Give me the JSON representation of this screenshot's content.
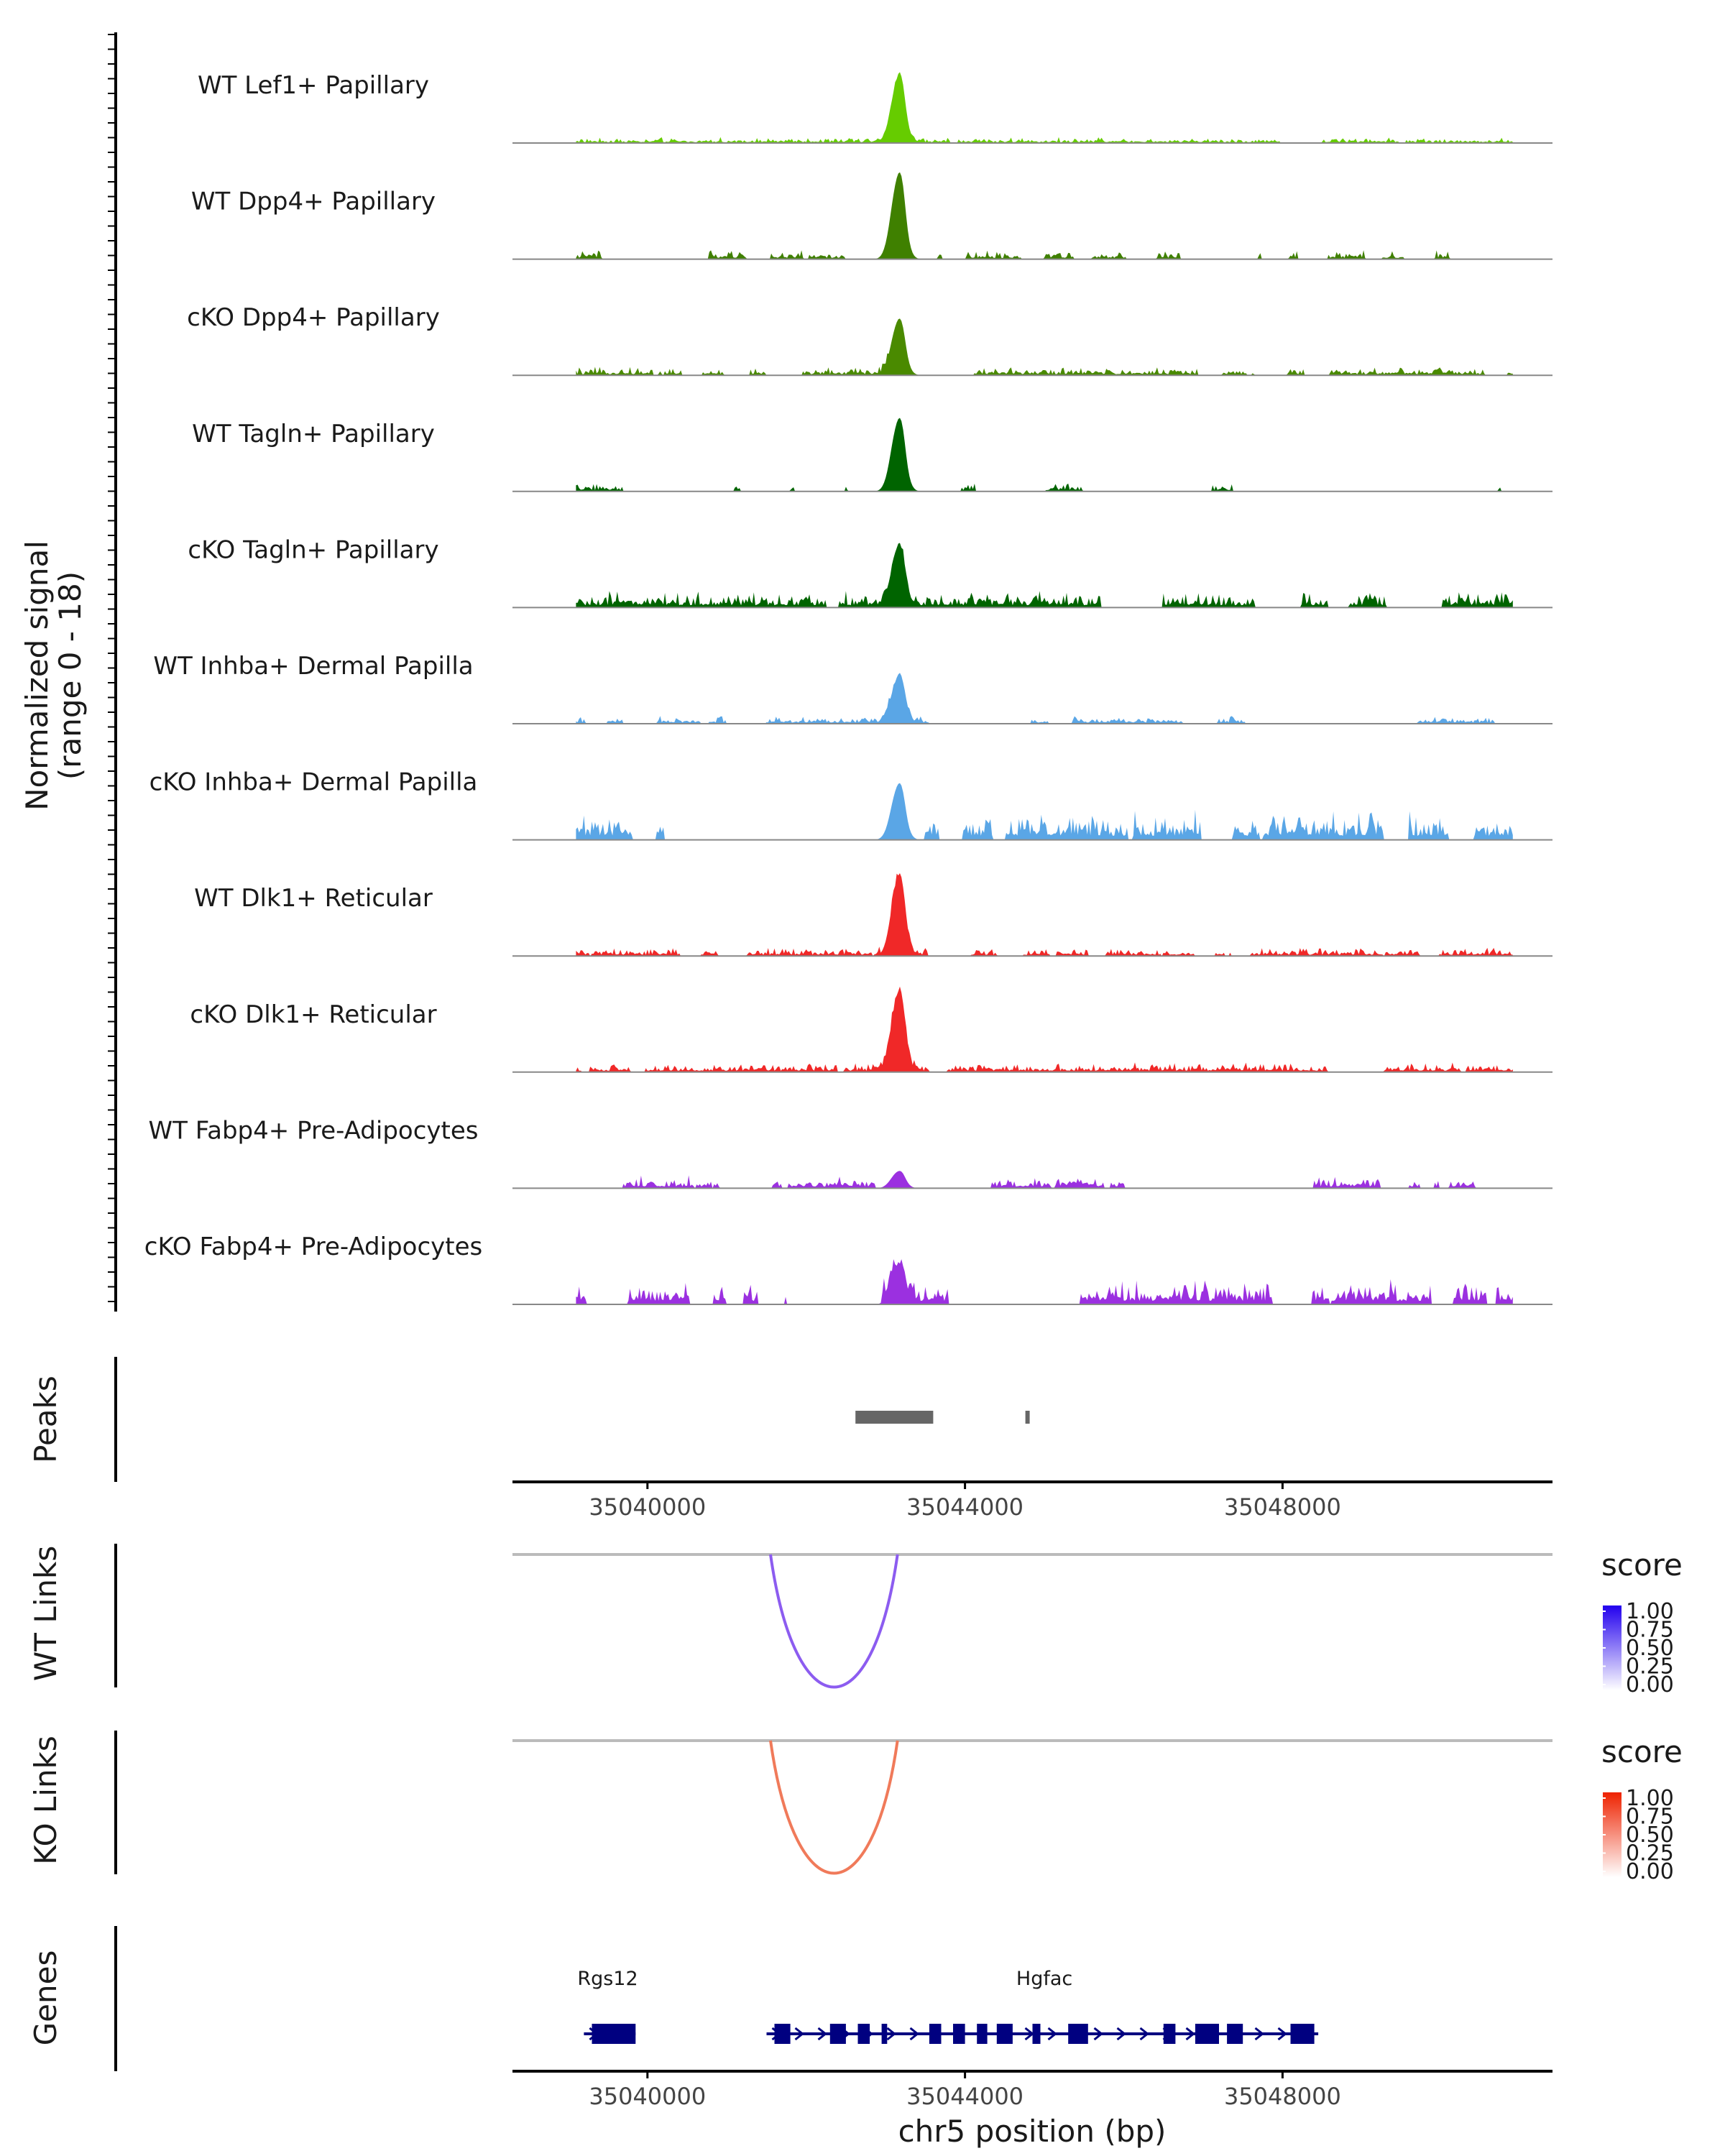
{
  "chart_data": {
    "type": "coverage-track",
    "region": {
      "chrom": "chr5",
      "start": 35038300,
      "end": 35051400
    },
    "ylabel_line1": "Normalized signal",
    "ylabel_line2": "(range 0 - 18)",
    "y_range": [
      0,
      18
    ],
    "tracks": [
      {
        "name": "WT Lef1+ Papillary",
        "color": "#66cc00",
        "peak": 10,
        "noise": 0.9,
        "fill": 0.95
      },
      {
        "name": "WT Dpp4+ Papillary",
        "color": "#3f8000",
        "peak": 13,
        "noise": 1.4,
        "fill": 0.55
      },
      {
        "name": "cKO Dpp4+ Papillary",
        "color": "#4a8a00",
        "peak": 8.5,
        "noise": 1.3,
        "fill": 0.75
      },
      {
        "name": "WT Tagln+ Papillary",
        "color": "#006400",
        "peak": 11,
        "noise": 1.4,
        "fill": 0.25
      },
      {
        "name": "cKO Tagln+ Papillary",
        "color": "#006400",
        "peak": 9,
        "noise": 2.6,
        "fill": 0.85
      },
      {
        "name": "WT Inhba+ Dermal Papilla",
        "color": "#5aa6e6",
        "peak": 7,
        "noise": 1.3,
        "fill": 0.45
      },
      {
        "name": "cKO Inhba+ Dermal Papilla",
        "color": "#5aa6e6",
        "peak": 8.5,
        "noise": 4.5,
        "fill": 0.45
      },
      {
        "name": "WT Dlk1+ Reticular",
        "color": "#f02828",
        "peak": 12,
        "noise": 1.3,
        "fill": 0.7
      },
      {
        "name": "cKO Dlk1+ Reticular",
        "color": "#f02828",
        "peak": 12,
        "noise": 1.5,
        "fill": 0.9
      },
      {
        "name": "WT Fabp4+ Pre-Adipocytes",
        "color": "#9b30e0",
        "peak": 2.6,
        "noise": 2.0,
        "fill": 0.35
      },
      {
        "name": "cKO Fabp4+ Pre-Adipocytes",
        "color": "#9b30e0",
        "peak": 5.5,
        "noise": 4.0,
        "fill": 0.45
      }
    ],
    "peaks_label": "Peaks",
    "peaks": [
      {
        "start": 35042620,
        "end": 35043600
      },
      {
        "start": 35044760,
        "end": 35044810
      }
    ],
    "x_ticks": [
      {
        "value": 35040000,
        "label": "35040000"
      },
      {
        "value": 35044000,
        "label": "35044000"
      },
      {
        "value": 35048000,
        "label": "35048000"
      }
    ],
    "links": [
      {
        "label": "WT Links",
        "start": 35041550,
        "end": 35043150,
        "score": 0.55,
        "color": "#8c5cf0",
        "legend": {
          "title": "score",
          "low": "#ffffff",
          "high": "#2200ee",
          "ticks": [
            "1.00",
            "0.75",
            "0.50",
            "0.25",
            "0.00"
          ]
        }
      },
      {
        "label": "KO Links",
        "start": 35041550,
        "end": 35043150,
        "score": 0.55,
        "color": "#f07a5a",
        "legend": {
          "title": "score",
          "low": "#ffffff",
          "high": "#ee2200",
          "ticks": [
            "1.00",
            "0.75",
            "0.50",
            "0.25",
            "0.00"
          ]
        }
      }
    ],
    "genes_label": "Genes",
    "genes": [
      {
        "name": "Rgs12",
        "start": 35039200,
        "end": 35039850,
        "color": "#000080",
        "exons": [
          [
            35039300,
            35039850
          ]
        ],
        "label_pos": 35039500
      },
      {
        "name": "Hgfac",
        "start": 35041500,
        "end": 35048450,
        "color": "#000080",
        "exons": [
          [
            35041600,
            35041800
          ],
          [
            35042300,
            35042500
          ],
          [
            35042650,
            35042800
          ],
          [
            35042950,
            35043020
          ],
          [
            35043550,
            35043700
          ],
          [
            35043850,
            35044000
          ],
          [
            35044150,
            35044280
          ],
          [
            35044400,
            35044600
          ],
          [
            35044850,
            35044950
          ],
          [
            35045300,
            35045550
          ],
          [
            35046500,
            35046650
          ],
          [
            35046900,
            35047200
          ],
          [
            35047300,
            35047500
          ],
          [
            35048100,
            35048400
          ]
        ],
        "label_pos": 35045000
      }
    ],
    "xlabel": "chr5 position (bp)"
  }
}
